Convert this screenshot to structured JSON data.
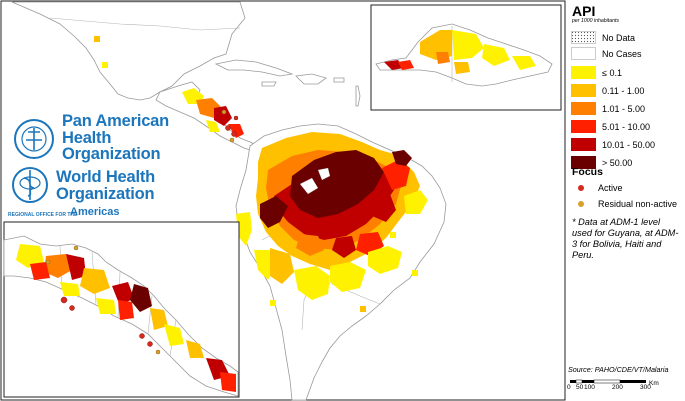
{
  "legend": {
    "title": "API",
    "subtitle": "per 1000 inhabitants",
    "classes": [
      {
        "label": "No Data",
        "color": "#ffffff",
        "pattern": "dotted"
      },
      {
        "label": "No Cases",
        "color": "#ffffff"
      },
      {
        "label": "≤ 0.1",
        "color": "#fff200"
      },
      {
        "label": "0.11 - 1.00",
        "color": "#ffc000"
      },
      {
        "label": "1.01 - 5.00",
        "color": "#ff8000"
      },
      {
        "label": "5.01 - 10.00",
        "color": "#ff2000"
      },
      {
        "label": "10.01 - 50.00",
        "color": "#c00000"
      },
      {
        "label": "> 50.00",
        "color": "#6a0000"
      }
    ],
    "focus_title": "Focus",
    "focus_items": [
      {
        "label": "Active",
        "color": "#d42a20"
      },
      {
        "label": "Residual non-active",
        "color": "#d8a030"
      }
    ],
    "note": "* Data at ADM-1 level used for Guyana, at ADM-3 for Bolivia, Haiti and Peru."
  },
  "source": "Source: PAHO/CDE/VT/Malaria",
  "scale": {
    "ticks": [
      "0",
      "50",
      "100",
      "200",
      "300"
    ],
    "unit": "Km"
  },
  "logos": {
    "paho": [
      "Pan American",
      "Health",
      "Organization"
    ],
    "who": [
      "World Health",
      "Organization"
    ],
    "who_region_small": "REGIONAL OFFICE FOR THE",
    "who_region": "Americas"
  }
}
